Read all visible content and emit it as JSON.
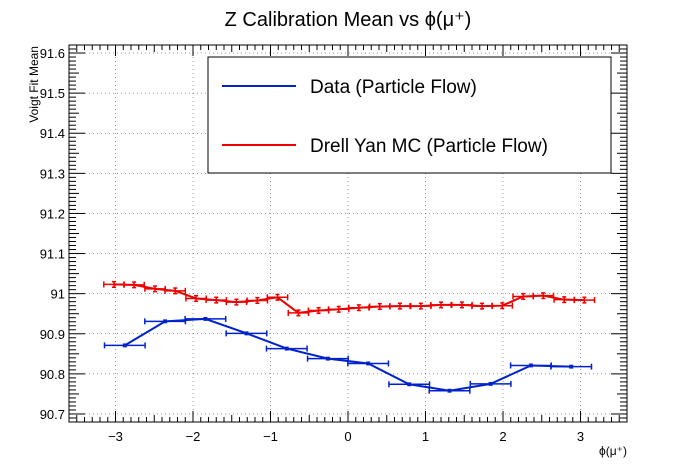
{
  "chart_data": {
    "type": "line",
    "title": "Z Calibration Mean vs ϕ(μ⁺)",
    "xlabel": "ϕ(μ⁺)",
    "ylabel": "Voigt Fit Mean",
    "xlim": [
      -3.6,
      3.6
    ],
    "ylim": [
      90.68,
      91.62
    ],
    "xticks": [
      -3,
      -2,
      -1,
      0,
      1,
      2,
      3
    ],
    "xtick_labels": [
      "−3",
      "−2",
      "−1",
      "0",
      "1",
      "2",
      "3"
    ],
    "yticks": [
      90.7,
      90.8,
      90.9,
      91,
      91.1,
      91.2,
      91.3,
      91.4,
      91.5,
      91.6
    ],
    "ytick_labels": [
      "90.7",
      "90.8",
      "90.9",
      "91",
      "91.1",
      "91.2",
      "91.3",
      "91.4",
      "91.5",
      "91.6"
    ],
    "grid": true,
    "legend_position": "top-right",
    "series": [
      {
        "name": "Data (Particle Flow)",
        "color": "#0022cc",
        "x": [
          -2.88,
          -2.36,
          -1.84,
          -1.31,
          -0.79,
          -0.26,
          0.26,
          0.79,
          1.31,
          1.84,
          2.36,
          2.88
        ],
        "xerr": 0.262,
        "y": [
          90.871,
          90.931,
          90.937,
          90.901,
          90.863,
          90.838,
          90.826,
          90.774,
          90.758,
          90.775,
          90.821,
          90.818
        ],
        "yerr": [
          0.003,
          0.003,
          0.003,
          0.003,
          0.003,
          0.003,
          0.003,
          0.003,
          0.003,
          0.003,
          0.003,
          0.003
        ]
      },
      {
        "name": "Drell Yan MC (Particle Flow)",
        "color": "#ee0000",
        "x": [
          -3.02,
          -2.76,
          -2.49,
          -2.23,
          -1.96,
          -1.7,
          -1.44,
          -1.17,
          -0.91,
          -0.64,
          -0.38,
          -0.12,
          0.14,
          0.41,
          0.67,
          0.94,
          1.2,
          1.47,
          1.73,
          1.99,
          2.26,
          2.52,
          2.79,
          3.05
        ],
        "xerr": 0.131,
        "y": [
          91.023,
          91.022,
          91.012,
          91.007,
          90.988,
          90.984,
          90.979,
          90.983,
          90.991,
          90.952,
          90.958,
          90.961,
          90.965,
          90.968,
          90.969,
          90.969,
          90.972,
          90.972,
          90.969,
          90.97,
          90.993,
          90.995,
          90.985,
          90.984
        ],
        "yerr": [
          0.007,
          0.007,
          0.007,
          0.007,
          0.007,
          0.007,
          0.007,
          0.007,
          0.007,
          0.007,
          0.007,
          0.007,
          0.007,
          0.007,
          0.007,
          0.007,
          0.007,
          0.007,
          0.007,
          0.007,
          0.007,
          0.007,
          0.007,
          0.007
        ]
      }
    ]
  }
}
